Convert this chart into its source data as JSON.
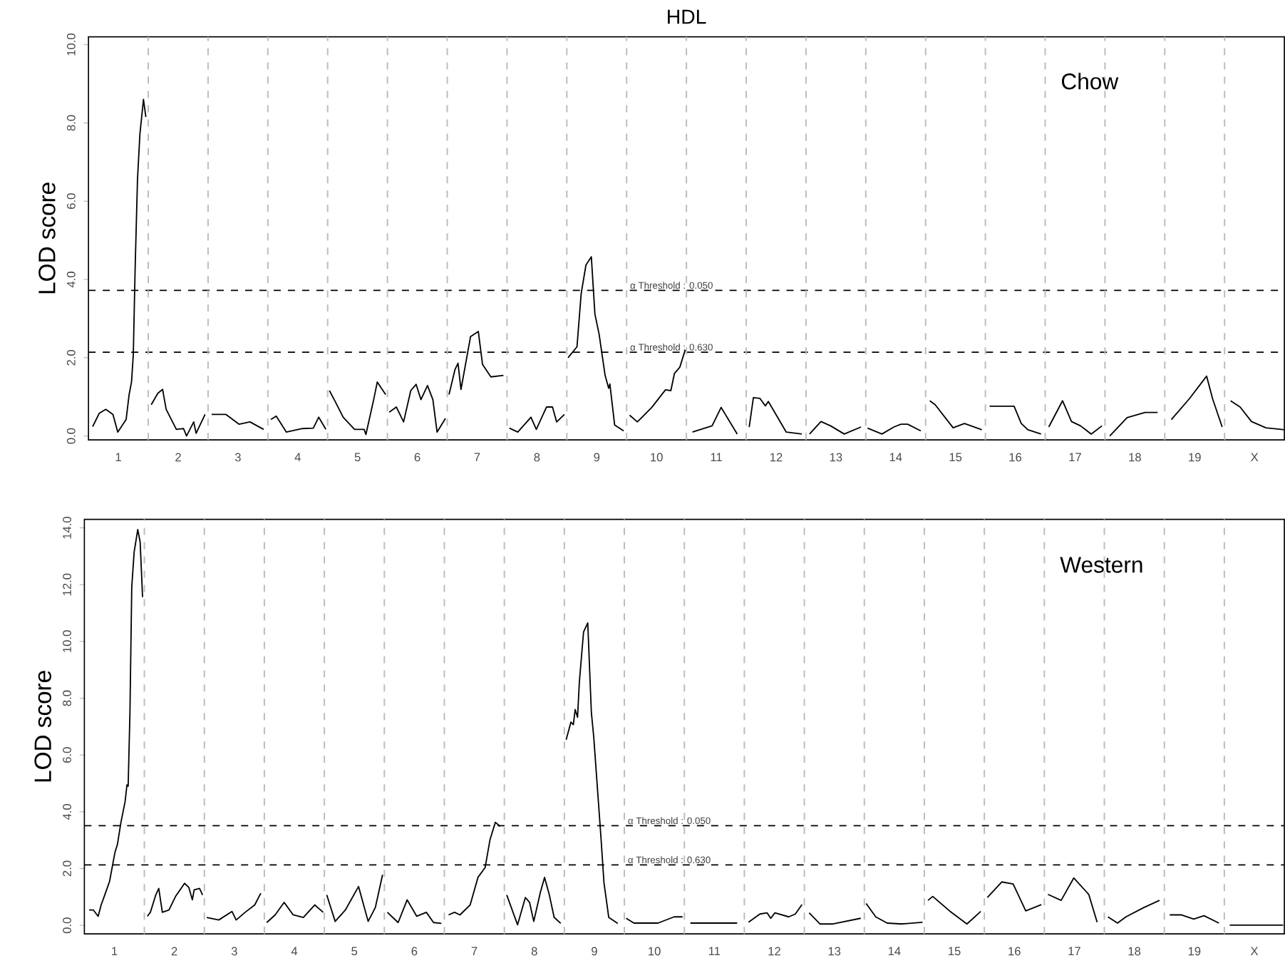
{
  "chart_data": [
    {
      "type": "line",
      "title": "HDL",
      "ylabel": "LOD score",
      "annotations": [
        "Chow",
        "α Threshold : 0.050",
        "α Threshold : 0.630"
      ],
      "xlim": [
        0.5,
        20.5
      ],
      "ylim": [
        -0.1,
        10.2
      ],
      "xticks": [
        1,
        2,
        3,
        4,
        5,
        6,
        7,
        8,
        9,
        10,
        11,
        12,
        13,
        14,
        15,
        16,
        17,
        18,
        19,
        {
          "value": 20,
          "label": "X"
        }
      ],
      "yticks": [
        {
          "value": 0,
          "label": "0.0"
        },
        {
          "value": 2,
          "label": "2.0"
        },
        {
          "value": 4,
          "label": "4.0"
        },
        {
          "value": 6,
          "label": "6.0"
        },
        {
          "value": 8,
          "label": "8.0"
        },
        {
          "value": 10,
          "label": "10.0"
        }
      ],
      "ref_lines": [
        {
          "axis": "y",
          "value": 3.72,
          "color": "#000000",
          "line_style": "dashed"
        },
        {
          "axis": "y",
          "value": 2.14,
          "color": "#000000",
          "line_style": "dashed"
        },
        {
          "axis": "x",
          "value": 1.5,
          "color": "#bdbdbd",
          "line_style": "dashed"
        },
        {
          "axis": "x",
          "value": 2.5,
          "color": "#bdbdbd",
          "line_style": "dashed"
        },
        {
          "axis": "x",
          "value": 3.5,
          "color": "#bdbdbd",
          "line_style": "dashed"
        },
        {
          "axis": "x",
          "value": 4.5,
          "color": "#bdbdbd",
          "line_style": "dashed"
        },
        {
          "axis": "x",
          "value": 5.5,
          "color": "#bdbdbd",
          "line_style": "dashed"
        },
        {
          "axis": "x",
          "value": 6.5,
          "color": "#bdbdbd",
          "line_style": "dashed"
        },
        {
          "axis": "x",
          "value": 7.5,
          "color": "#bdbdbd",
          "line_style": "dashed"
        },
        {
          "axis": "x",
          "value": 8.5,
          "color": "#bdbdbd",
          "line_style": "dashed"
        },
        {
          "axis": "x",
          "value": 9.5,
          "color": "#bdbdbd",
          "line_style": "dashed"
        },
        {
          "axis": "x",
          "value": 10.5,
          "color": "#bdbdbd",
          "line_style": "dashed"
        },
        {
          "axis": "x",
          "value": 11.5,
          "color": "#bdbdbd",
          "line_style": "dashed"
        },
        {
          "axis": "x",
          "value": 12.5,
          "color": "#bdbdbd",
          "line_style": "dashed"
        },
        {
          "axis": "x",
          "value": 13.5,
          "color": "#bdbdbd",
          "line_style": "dashed"
        },
        {
          "axis": "x",
          "value": 14.5,
          "color": "#bdbdbd",
          "line_style": "dashed"
        },
        {
          "axis": "x",
          "value": 15.5,
          "color": "#bdbdbd",
          "line_style": "dashed"
        },
        {
          "axis": "x",
          "value": 16.5,
          "color": "#bdbdbd",
          "line_style": "dashed"
        },
        {
          "axis": "x",
          "value": 17.5,
          "color": "#bdbdbd",
          "line_style": "dashed"
        },
        {
          "axis": "x",
          "value": 18.5,
          "color": "#bdbdbd",
          "line_style": "dashed"
        },
        {
          "axis": "x",
          "value": 19.5,
          "color": "#bdbdbd",
          "line_style": "dashed"
        }
      ],
      "series": [
        {
          "color": "#000000",
          "x": [
            0.57,
            0.68,
            0.79,
            0.91,
            0.99,
            1.13,
            1.18,
            1.22,
            1.25,
            1.28,
            1.32,
            1.36,
            1.42,
            1.46
          ],
          "values": [
            0.24,
            0.58,
            0.68,
            0.55,
            0.1,
            0.42,
            1.06,
            1.38,
            2.08,
            4.25,
            6.56,
            7.71,
            8.6,
            8.15
          ]
        },
        {
          "color": "#000000",
          "x": [
            1.55,
            1.66,
            1.74,
            1.8,
            1.97,
            2.09,
            2.14,
            2.26,
            2.3,
            2.45
          ],
          "values": [
            0.8,
            1.09,
            1.19,
            0.68,
            0.17,
            0.19,
            0.0,
            0.36,
            0.07,
            0.55
          ]
        },
        {
          "color": "#000000",
          "x": [
            2.56,
            2.8,
            3.02,
            3.2,
            3.43
          ],
          "values": [
            0.55,
            0.55,
            0.3,
            0.36,
            0.17
          ]
        },
        {
          "color": "#000000",
          "x": [
            3.55,
            3.64,
            3.81,
            4.08,
            4.26,
            4.35,
            4.47
          ],
          "values": [
            0.42,
            0.51,
            0.1,
            0.19,
            0.2,
            0.48,
            0.17
          ]
        },
        {
          "color": "#000000",
          "x": [
            4.53,
            4.63,
            4.76,
            4.95,
            5.11,
            5.14,
            5.27,
            5.33,
            5.47
          ],
          "values": [
            1.16,
            0.87,
            0.48,
            0.17,
            0.17,
            0.04,
            0.93,
            1.38,
            1.06
          ]
        },
        {
          "color": "#000000",
          "x": [
            5.53,
            5.65,
            5.77,
            5.89,
            5.98,
            6.06,
            6.17,
            6.26,
            6.33,
            6.47
          ],
          "values": [
            0.61,
            0.74,
            0.36,
            1.16,
            1.32,
            0.93,
            1.29,
            0.93,
            0.1,
            0.45
          ]
        },
        {
          "color": "#000000",
          "x": [
            6.53,
            6.63,
            6.68,
            6.73,
            6.89,
            7.02,
            7.09,
            7.23,
            7.44
          ],
          "values": [
            1.06,
            1.7,
            1.86,
            1.19,
            2.54,
            2.67,
            1.83,
            1.51,
            1.55
          ]
        },
        {
          "color": "#000000",
          "x": [
            7.54,
            7.68,
            7.9,
            7.99,
            8.16,
            8.26,
            8.33,
            8.46
          ],
          "values": [
            0.2,
            0.1,
            0.48,
            0.17,
            0.74,
            0.74,
            0.36,
            0.55
          ]
        },
        {
          "color": "#000000",
          "x": [
            8.52,
            8.67,
            8.74,
            8.82,
            8.91,
            8.97,
            9.04,
            9.14,
            9.2,
            9.22,
            9.3,
            9.45
          ],
          "values": [
            2.0,
            2.28,
            3.64,
            4.37,
            4.58,
            3.11,
            2.6,
            1.55,
            1.22,
            1.33,
            0.28,
            0.13
          ]
        },
        {
          "color": "#000000",
          "x": [
            9.55,
            9.68,
            9.92,
            10.15,
            10.24,
            10.3,
            10.39,
            10.48
          ],
          "values": [
            0.53,
            0.36,
            0.73,
            1.18,
            1.16,
            1.6,
            1.76,
            2.2
          ]
        },
        {
          "color": "#000000",
          "x": [
            10.6,
            10.93,
            11.08,
            11.35
          ],
          "values": [
            0.1,
            0.26,
            0.73,
            0.05
          ]
        },
        {
          "color": "#000000",
          "x": [
            11.55,
            11.62,
            11.73,
            11.82,
            11.87,
            11.94,
            12.17,
            12.43
          ],
          "values": [
            0.23,
            0.98,
            0.96,
            0.77,
            0.88,
            0.7,
            0.1,
            0.05
          ]
        },
        {
          "color": "#000000",
          "x": [
            12.56,
            12.75,
            12.91,
            13.14,
            13.42
          ],
          "values": [
            0.05,
            0.37,
            0.26,
            0.05,
            0.23
          ]
        },
        {
          "color": "#000000",
          "x": [
            13.53,
            13.77,
            13.97,
            14.09,
            14.2,
            14.42
          ],
          "values": [
            0.2,
            0.05,
            0.23,
            0.3,
            0.3,
            0.13
          ]
        },
        {
          "color": "#000000",
          "x": [
            14.57,
            14.66,
            14.96,
            15.15,
            15.44
          ],
          "values": [
            0.9,
            0.8,
            0.21,
            0.32,
            0.16
          ]
        },
        {
          "color": "#000000",
          "x": [
            15.57,
            15.98,
            16.1,
            16.21,
            16.43
          ],
          "values": [
            0.76,
            0.76,
            0.32,
            0.16,
            0.05
          ]
        },
        {
          "color": "#000000",
          "x": [
            16.56,
            16.79,
            16.94,
            17.09,
            17.27,
            17.45
          ],
          "values": [
            0.23,
            0.9,
            0.37,
            0.26,
            0.05,
            0.26
          ]
        },
        {
          "color": "#000000",
          "x": [
            17.58,
            17.87,
            18.17,
            18.38
          ],
          "values": [
            0.0,
            0.47,
            0.6,
            0.6
          ]
        },
        {
          "color": "#000000",
          "x": [
            18.61,
            18.91,
            19.2,
            19.3,
            19.46
          ],
          "values": [
            0.42,
            0.95,
            1.53,
            0.95,
            0.23
          ]
        },
        {
          "color": "#000000",
          "x": [
            19.6,
            19.76,
            19.95,
            20.19,
            20.5
          ],
          "values": [
            0.9,
            0.74,
            0.37,
            0.21,
            0.16
          ]
        }
      ]
    },
    {
      "type": "line",
      "ylabel": "LOD score",
      "annotations": [
        "Western",
        "α Threshold : 0.050",
        "α Threshold : 0.630"
      ],
      "xlim": [
        0.5,
        20.5
      ],
      "ylim": [
        -0.3,
        14.3
      ],
      "xticks": [
        1,
        2,
        3,
        4,
        5,
        6,
        7,
        8,
        9,
        10,
        11,
        12,
        13,
        14,
        15,
        16,
        17,
        18,
        19,
        {
          "value": 20,
          "label": "X"
        }
      ],
      "yticks": [
        {
          "value": 0,
          "label": "0.0"
        },
        {
          "value": 2,
          "label": "2.0"
        },
        {
          "value": 4,
          "label": "4.0"
        },
        {
          "value": 6,
          "label": "6.0"
        },
        {
          "value": 8,
          "label": "8.0"
        },
        {
          "value": 10,
          "label": "10.0"
        },
        {
          "value": 12,
          "label": "12.0"
        },
        {
          "value": 14,
          "label": "14.0"
        }
      ],
      "ref_lines": [
        {
          "axis": "y",
          "value": 3.51,
          "color": "#000000",
          "line_style": "dashed"
        },
        {
          "axis": "y",
          "value": 2.13,
          "color": "#000000",
          "line_style": "dashed"
        },
        {
          "axis": "x",
          "value": 1.5,
          "color": "#bdbdbd",
          "line_style": "dashed"
        },
        {
          "axis": "x",
          "value": 2.5,
          "color": "#bdbdbd",
          "line_style": "dashed"
        },
        {
          "axis": "x",
          "value": 3.5,
          "color": "#bdbdbd",
          "line_style": "dashed"
        },
        {
          "axis": "x",
          "value": 4.5,
          "color": "#bdbdbd",
          "line_style": "dashed"
        },
        {
          "axis": "x",
          "value": 5.5,
          "color": "#bdbdbd",
          "line_style": "dashed"
        },
        {
          "axis": "x",
          "value": 6.5,
          "color": "#bdbdbd",
          "line_style": "dashed"
        },
        {
          "axis": "x",
          "value": 7.5,
          "color": "#bdbdbd",
          "line_style": "dashed"
        },
        {
          "axis": "x",
          "value": 8.5,
          "color": "#bdbdbd",
          "line_style": "dashed"
        },
        {
          "axis": "x",
          "value": 9.5,
          "color": "#bdbdbd",
          "line_style": "dashed"
        },
        {
          "axis": "x",
          "value": 10.5,
          "color": "#bdbdbd",
          "line_style": "dashed"
        },
        {
          "axis": "x",
          "value": 11.5,
          "color": "#bdbdbd",
          "line_style": "dashed"
        },
        {
          "axis": "x",
          "value": 12.5,
          "color": "#bdbdbd",
          "line_style": "dashed"
        },
        {
          "axis": "x",
          "value": 13.5,
          "color": "#bdbdbd",
          "line_style": "dashed"
        },
        {
          "axis": "x",
          "value": 14.5,
          "color": "#bdbdbd",
          "line_style": "dashed"
        },
        {
          "axis": "x",
          "value": 15.5,
          "color": "#bdbdbd",
          "line_style": "dashed"
        },
        {
          "axis": "x",
          "value": 16.5,
          "color": "#bdbdbd",
          "line_style": "dashed"
        },
        {
          "axis": "x",
          "value": 17.5,
          "color": "#bdbdbd",
          "line_style": "dashed"
        },
        {
          "axis": "x",
          "value": 18.5,
          "color": "#bdbdbd",
          "line_style": "dashed"
        },
        {
          "axis": "x",
          "value": 19.5,
          "color": "#bdbdbd",
          "line_style": "dashed"
        }
      ],
      "series": [
        {
          "color": "#000000",
          "x": [
            0.58,
            0.65,
            0.73,
            0.78,
            0.84,
            0.92,
            1.01,
            1.05,
            1.11,
            1.18,
            1.21,
            1.23,
            1.26,
            1.29,
            1.33,
            1.39,
            1.43,
            1.47
          ],
          "values": [
            0.54,
            0.54,
            0.32,
            0.72,
            1.07,
            1.55,
            2.57,
            2.84,
            3.63,
            4.37,
            4.95,
            4.9,
            7.51,
            11.92,
            13.15,
            13.94,
            13.5,
            11.56
          ]
        },
        {
          "color": "#000000",
          "x": [
            1.55,
            1.6,
            1.69,
            1.74,
            1.8,
            1.91,
            2.02,
            2.17,
            2.24,
            2.3,
            2.33,
            2.42,
            2.47
          ],
          "values": [
            0.32,
            0.46,
            1.07,
            1.3,
            0.46,
            0.54,
            1.02,
            1.48,
            1.34,
            0.9,
            1.25,
            1.3,
            1.07
          ]
        },
        {
          "color": "#000000",
          "x": [
            2.54,
            2.74,
            2.96,
            3.03,
            3.18,
            3.34,
            3.44
          ],
          "values": [
            0.28,
            0.19,
            0.49,
            0.19,
            0.46,
            0.72,
            1.13
          ]
        },
        {
          "color": "#000000",
          "x": [
            3.54,
            3.68,
            3.83,
            3.98,
            4.15,
            4.34,
            4.48
          ],
          "values": [
            0.1,
            0.37,
            0.81,
            0.37,
            0.28,
            0.72,
            0.46
          ]
        },
        {
          "color": "#000000",
          "x": [
            4.54,
            4.68,
            4.85,
            5.07,
            5.23,
            5.35,
            5.47
          ],
          "values": [
            1.07,
            0.14,
            0.54,
            1.37,
            0.14,
            0.63,
            1.78
          ]
        },
        {
          "color": "#000000",
          "x": [
            5.55,
            5.73,
            5.88,
            6.04,
            6.2,
            6.32,
            6.45
          ],
          "values": [
            0.46,
            0.1,
            0.9,
            0.32,
            0.46,
            0.1,
            0.07
          ]
        },
        {
          "color": "#000000",
          "x": [
            6.57,
            6.67,
            6.76,
            6.93,
            7.06,
            7.18,
            7.26,
            7.35,
            7.43
          ],
          "values": [
            0.37,
            0.46,
            0.37,
            0.72,
            1.69,
            2.04,
            3.01,
            3.63,
            3.49
          ]
        },
        {
          "color": "#000000",
          "x": [
            7.54,
            7.72,
            7.85,
            7.92,
            7.99,
            8.1,
            8.17,
            8.25,
            8.33,
            8.44
          ],
          "values": [
            1.07,
            0.02,
            0.98,
            0.81,
            0.14,
            1.16,
            1.69,
            1.07,
            0.28,
            0.07
          ]
        },
        {
          "color": "#000000",
          "x": [
            8.53,
            8.61,
            8.65,
            8.68,
            8.72,
            8.75,
            8.82,
            8.89,
            8.95,
            8.99,
            9.11,
            9.16,
            9.24,
            9.39
          ],
          "values": [
            6.54,
            7.16,
            7.07,
            7.6,
            7.33,
            8.57,
            10.33,
            10.65,
            7.51,
            6.63,
            3.1,
            1.51,
            0.28,
            0.07
          ]
        },
        {
          "color": "#000000",
          "x": [
            9.53,
            9.66,
            10.06,
            10.33,
            10.47
          ],
          "values": [
            0.25,
            0.08,
            0.08,
            0.3,
            0.3
          ]
        },
        {
          "color": "#000000",
          "x": [
            10.6,
            11.38
          ],
          "values": [
            0.08,
            0.08
          ]
        },
        {
          "color": "#000000",
          "x": [
            11.57,
            11.76,
            11.88,
            11.94,
            12.01,
            12.24,
            12.35,
            12.46
          ],
          "values": [
            0.11,
            0.4,
            0.44,
            0.25,
            0.44,
            0.3,
            0.4,
            0.73
          ]
        },
        {
          "color": "#000000",
          "x": [
            12.58,
            12.76,
            12.98,
            13.44
          ],
          "values": [
            0.44,
            0.05,
            0.05,
            0.25
          ]
        },
        {
          "color": "#000000",
          "x": [
            13.53,
            13.69,
            13.88,
            14.12,
            14.47
          ],
          "values": [
            0.77,
            0.3,
            0.08,
            0.05,
            0.11
          ]
        },
        {
          "color": "#000000",
          "x": [
            14.56,
            14.64,
            14.92,
            15.21,
            15.44
          ],
          "values": [
            0.88,
            1.02,
            0.51,
            0.05,
            0.49
          ]
        },
        {
          "color": "#000000",
          "x": [
            15.55,
            15.79,
            15.98,
            16.19,
            16.45
          ],
          "values": [
            0.98,
            1.53,
            1.46,
            0.51,
            0.73
          ]
        },
        {
          "color": "#000000",
          "x": [
            16.56,
            16.78,
            16.99,
            17.24,
            17.38
          ],
          "values": [
            1.09,
            0.88,
            1.67,
            1.09,
            0.11
          ]
        },
        {
          "color": "#000000",
          "x": [
            17.56,
            17.72,
            17.86,
            18.16,
            18.42
          ],
          "values": [
            0.3,
            0.08,
            0.3,
            0.63,
            0.88
          ]
        },
        {
          "color": "#000000",
          "x": [
            18.59,
            18.78,
            18.99,
            19.16,
            19.41
          ],
          "values": [
            0.37,
            0.37,
            0.22,
            0.34,
            0.08
          ]
        },
        {
          "color": "#000000",
          "x": [
            19.59,
            20.48
          ],
          "values": [
            0.01,
            0.01
          ]
        }
      ]
    }
  ]
}
